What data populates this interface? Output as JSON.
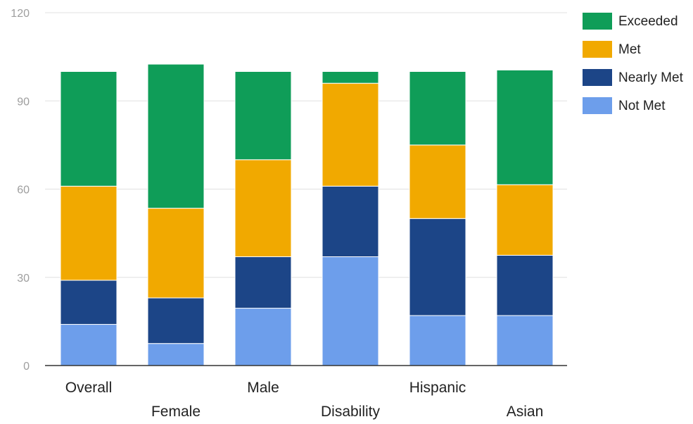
{
  "chart_data": {
    "type": "bar",
    "stacked": true,
    "categories": [
      "Overall",
      "Female",
      "Male",
      "Disability",
      "Hispanic",
      "Asian"
    ],
    "series": [
      {
        "name": "Not Met",
        "color": "#6d9eeb",
        "values": [
          14,
          7.5,
          19.5,
          37,
          17,
          17
        ]
      },
      {
        "name": "Nearly Met",
        "color": "#1c4587",
        "values": [
          15,
          15.5,
          17.5,
          24,
          33,
          20.5
        ]
      },
      {
        "name": "Met",
        "color": "#f1a900",
        "values": [
          32,
          30.5,
          33,
          35,
          25,
          24
        ]
      },
      {
        "name": "Exceeded",
        "color": "#0f9d58",
        "values": [
          39,
          49,
          30,
          4,
          25,
          39
        ]
      }
    ],
    "yticks": [
      "0",
      "30",
      "60",
      "90",
      "120"
    ],
    "ylim": [
      0,
      120
    ],
    "grid": true,
    "legend_position": "right",
    "title": "",
    "xlabel": "",
    "ylabel": ""
  }
}
